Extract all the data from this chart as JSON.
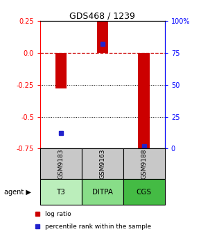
{
  "title": "GDS468 / 1239",
  "samples": [
    "GSM9183",
    "GSM9163",
    "GSM9188"
  ],
  "agents": [
    "T3",
    "DITPA",
    "CGS"
  ],
  "log_ratios": [
    -0.28,
    0.25,
    -0.75
  ],
  "percentile_ranks": [
    12,
    82,
    2
  ],
  "ylim": [
    -0.75,
    0.25
  ],
  "y_ticks_left": [
    0.25,
    0.0,
    -0.25,
    -0.5,
    -0.75
  ],
  "y_ticks_right": [
    100,
    75,
    50,
    25,
    0
  ],
  "bar_color": "#cc0000",
  "dot_color": "#2222cc",
  "zero_line_color": "#cc0000",
  "sample_bg": "#c8c8c8",
  "agent_colors": [
    "#bbeebb",
    "#88dd88",
    "#44bb44"
  ],
  "legend_items": [
    "log ratio",
    "percentile rank within the sample"
  ],
  "legend_colors": [
    "#cc0000",
    "#2222cc"
  ],
  "bar_width": 0.28
}
